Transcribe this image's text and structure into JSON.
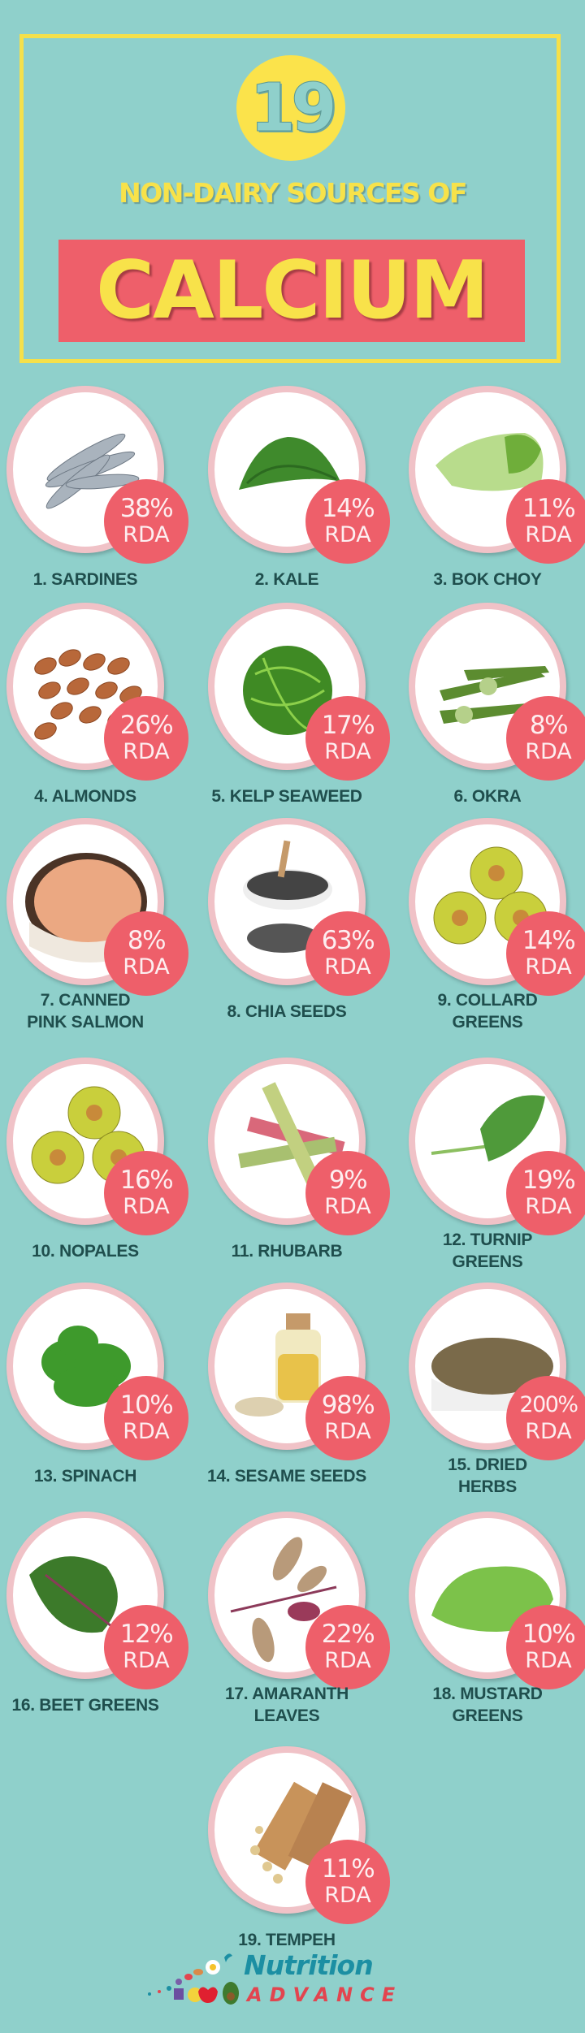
{
  "header": {
    "count": "19",
    "subtitle": "NON-DAIRY SOURCES OF",
    "title": "CALCIUM"
  },
  "rda_label": "RDA",
  "items": [
    {
      "label": "1. SARDINES",
      "rda": "38%",
      "rda_value": 38,
      "image": "sardines"
    },
    {
      "label": "2. KALE",
      "rda": "14%",
      "rda_value": 14,
      "image": "kale"
    },
    {
      "label": "3. BOK CHOY",
      "rda": "11%",
      "rda_value": 11,
      "image": "bok-choy"
    },
    {
      "label": "4. ALMONDS",
      "rda": "26%",
      "rda_value": 26,
      "image": "almonds"
    },
    {
      "label": "5. KELP SEAWEED",
      "rda": "17%",
      "rda_value": 17,
      "image": "kelp-seaweed"
    },
    {
      "label": "6. OKRA",
      "rda": "8%",
      "rda_value": 8,
      "image": "okra"
    },
    {
      "label": "7. CANNED\nPINK SALMON",
      "rda": "8%",
      "rda_value": 8,
      "image": "canned-salmon"
    },
    {
      "label": "8. CHIA SEEDS",
      "rda": "63%",
      "rda_value": 63,
      "image": "chia-seeds"
    },
    {
      "label": "9. COLLARD\nGREENS",
      "rda": "14%",
      "rda_value": 14,
      "image": "prickly-pears"
    },
    {
      "label": "10. NOPALES",
      "rda": "16%",
      "rda_value": 16,
      "image": "prickly-pears"
    },
    {
      "label": "11. RHUBARB",
      "rda": "9%",
      "rda_value": 9,
      "image": "rhubarb"
    },
    {
      "label": "12. TURNIP\nGREENS",
      "rda": "19%",
      "rda_value": 19,
      "image": "turnip-greens"
    },
    {
      "label": "13. SPINACH",
      "rda": "10%",
      "rda_value": 10,
      "image": "spinach"
    },
    {
      "label": "14. SESAME SEEDS",
      "rda": "98%",
      "rda_value": 98,
      "image": "sesame-oil"
    },
    {
      "label": "15. DRIED\nHERBS",
      "rda": "200%",
      "rda_value": 200,
      "image": "dried-herbs"
    },
    {
      "label": "16. BEET GREENS",
      "rda": "12%",
      "rda_value": 12,
      "image": "beet-greens"
    },
    {
      "label": "17. AMARANTH\nLEAVES",
      "rda": "22%",
      "rda_value": 22,
      "image": "amaranth-leaves"
    },
    {
      "label": "18. MUSTARD\nGREENS",
      "rda": "10%",
      "rda_value": 10,
      "image": "mustard-greens"
    },
    {
      "label": "19. TEMPEH",
      "rda": "11%",
      "rda_value": 11,
      "image": "tempeh"
    }
  ],
  "footer": {
    "logo_line1": "Nutrition",
    "logo_line2": "ADVANCE"
  },
  "colors": {
    "background": "#8fd0cb",
    "yellow": "#f8e24a",
    "badge_red": "#ee5f6a",
    "ring_pink": "#f0c2c7",
    "label_text": "#1f4e4d"
  }
}
